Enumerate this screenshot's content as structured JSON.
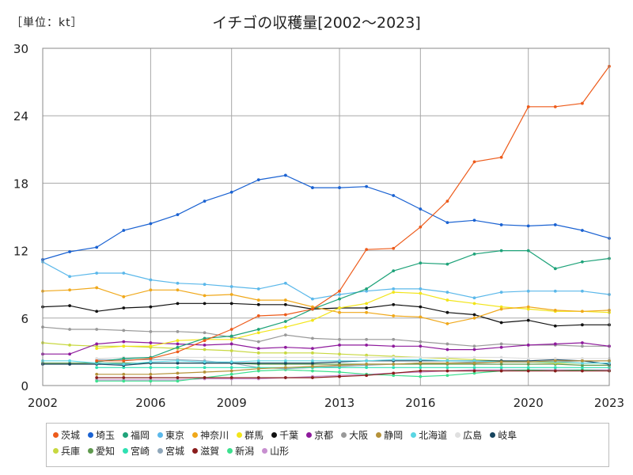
{
  "unit_label": "［単位：kt］",
  "title": "イチゴの収穫量[2002～2023]",
  "chart_data": {
    "type": "line",
    "title": "イチゴの収穫量[2002～2023]",
    "unit": "［単位：kt］",
    "xlabel": "",
    "ylabel": "",
    "xlim": [
      2002,
      2023
    ],
    "ylim": [
      0,
      30
    ],
    "xticks": [
      "2002",
      "2006",
      "2009",
      "2013",
      "2016",
      "2020",
      "2023"
    ],
    "yticks": [
      "0",
      "6",
      "12",
      "18",
      "24",
      "30"
    ],
    "grid": true,
    "legend_position": "bottom",
    "x": [
      2002,
      2003,
      2004,
      2005,
      2006,
      2007,
      2008,
      2009,
      2010,
      2011,
      2012,
      2013,
      2014,
      2015,
      2016,
      2017,
      2018,
      2019,
      2020,
      2021,
      2022,
      2023
    ],
    "series": [
      {
        "name": "茨城",
        "color": "#ed5b1b",
        "values": [
          null,
          null,
          2.2,
          2.2,
          2.4,
          3.0,
          4.0,
          5.0,
          6.2,
          6.3,
          6.8,
          8.4,
          12.1,
          12.2,
          14.1,
          16.4,
          19.9,
          20.3,
          24.8,
          24.8,
          25.1,
          28.4
        ]
      },
      {
        "name": "埼玉",
        "color": "#1a62d2",
        "values": [
          11.2,
          11.9,
          12.3,
          13.8,
          14.4,
          15.2,
          16.4,
          17.2,
          18.3,
          18.7,
          17.6,
          17.6,
          17.7,
          16.9,
          15.7,
          14.5,
          14.7,
          14.3,
          14.2,
          14.3,
          13.8,
          13.1
        ]
      },
      {
        "name": "福岡",
        "color": "#1fa37a",
        "values": [
          null,
          null,
          2.1,
          2.4,
          2.5,
          3.4,
          4.2,
          4.4,
          5.0,
          5.7,
          6.8,
          7.7,
          8.6,
          10.2,
          10.9,
          10.8,
          11.7,
          12.0,
          12.0,
          10.4,
          11.0,
          11.3
        ]
      },
      {
        "name": "東京",
        "color": "#5bb8ea",
        "values": [
          11.0,
          9.7,
          10.0,
          10.0,
          9.4,
          9.1,
          9.0,
          8.8,
          8.6,
          9.1,
          7.7,
          8.1,
          8.4,
          8.6,
          8.6,
          8.3,
          7.8,
          8.3,
          8.4,
          8.4,
          8.4,
          8.1
        ]
      },
      {
        "name": "神奈川",
        "color": "#f0a81a",
        "values": [
          8.4,
          8.5,
          8.7,
          7.9,
          8.5,
          8.5,
          8.0,
          8.1,
          7.6,
          7.6,
          7.0,
          6.5,
          6.5,
          6.2,
          6.1,
          5.5,
          6.0,
          6.8,
          7.0,
          6.7,
          6.6,
          6.7
        ]
      },
      {
        "name": "群馬",
        "color": "#f2e51a",
        "values": [
          null,
          null,
          3.3,
          3.5,
          3.5,
          4.0,
          4.1,
          4.1,
          4.7,
          5.2,
          5.8,
          6.9,
          7.3,
          8.3,
          8.2,
          7.6,
          7.3,
          7.0,
          6.8,
          6.6,
          6.6,
          6.5
        ]
      },
      {
        "name": "千葉",
        "color": "#111111",
        "values": [
          7.0,
          7.1,
          6.6,
          6.9,
          7.0,
          7.3,
          7.3,
          7.3,
          7.2,
          7.2,
          6.8,
          6.9,
          6.9,
          7.2,
          7.0,
          6.5,
          6.3,
          5.6,
          5.8,
          5.3,
          5.4,
          5.4
        ]
      },
      {
        "name": "京都",
        "color": "#8e1a9c",
        "values": [
          2.8,
          2.8,
          3.7,
          3.9,
          3.8,
          3.7,
          3.6,
          3.7,
          3.3,
          3.4,
          3.3,
          3.6,
          3.6,
          3.5,
          3.5,
          3.2,
          3.2,
          3.4,
          3.6,
          3.7,
          3.8,
          3.5
        ]
      },
      {
        "name": "大阪",
        "color": "#999999",
        "values": [
          5.2,
          5.0,
          5.0,
          4.9,
          4.8,
          4.8,
          4.7,
          4.3,
          3.9,
          4.5,
          4.2,
          4.1,
          4.1,
          4.1,
          3.9,
          3.7,
          3.5,
          3.7,
          3.6,
          3.6,
          3.5,
          3.5
        ]
      },
      {
        "name": "静岡",
        "color": "#b5923a",
        "values": [
          null,
          null,
          1.0,
          1.0,
          1.0,
          1.1,
          1.2,
          1.3,
          1.5,
          1.6,
          1.7,
          1.8,
          1.9,
          1.9,
          2.0,
          2.0,
          2.0,
          2.1,
          2.1,
          2.2,
          2.2,
          2.2
        ]
      },
      {
        "name": "北海道",
        "color": "#5ad6e3",
        "values": [
          2.2,
          2.2,
          2.0,
          1.9,
          2.1,
          2.2,
          2.1,
          2.1,
          2.2,
          2.2,
          2.2,
          2.2,
          2.2,
          2.3,
          2.3,
          2.2,
          2.2,
          2.1,
          2.1,
          2.1,
          2.0,
          2.0
        ]
      },
      {
        "name": "広島",
        "color": "#e0e0e0",
        "values": [
          null,
          null,
          2.4,
          2.5,
          2.5,
          2.5,
          2.5,
          2.5,
          2.5,
          2.5,
          2.5,
          2.5,
          2.5,
          2.5,
          2.5,
          2.5,
          2.5,
          2.5,
          2.4,
          2.4,
          2.4,
          2.4
        ]
      },
      {
        "name": "岐阜",
        "color": "#16445e",
        "values": [
          1.9,
          1.9,
          1.9,
          1.8,
          2.0,
          2.0,
          2.0,
          2.0,
          2.0,
          2.0,
          2.0,
          2.1,
          2.2,
          2.2,
          2.2,
          2.2,
          2.2,
          2.2,
          2.2,
          2.3,
          2.2,
          1.9
        ]
      },
      {
        "name": "兵庫",
        "color": "#c8d840",
        "values": [
          3.8,
          3.6,
          3.5,
          3.5,
          3.4,
          3.3,
          3.2,
          3.1,
          2.9,
          2.9,
          2.9,
          2.8,
          2.7,
          2.6,
          2.5,
          2.4,
          2.3,
          2.2,
          2.1,
          2.0,
          2.0,
          2.0
        ]
      },
      {
        "name": "愛知",
        "color": "#5f9a4e",
        "values": [
          2.0,
          2.0,
          2.0,
          2.0,
          2.0,
          2.0,
          2.0,
          2.0,
          1.9,
          1.9,
          1.9,
          1.9,
          1.9,
          1.9,
          1.9,
          1.9,
          1.9,
          1.9,
          1.9,
          1.9,
          1.8,
          1.8
        ]
      },
      {
        "name": "宮崎",
        "color": "#2fe0b2",
        "values": [
          null,
          null,
          1.6,
          1.6,
          1.6,
          1.6,
          1.6,
          1.6,
          1.6,
          1.6,
          1.6,
          1.6,
          1.6,
          1.6,
          1.6,
          1.6,
          1.6,
          1.6,
          1.6,
          1.6,
          1.6,
          1.6
        ]
      },
      {
        "name": "宮城",
        "color": "#8fa7ba",
        "values": [
          null,
          null,
          2.3,
          2.3,
          2.3,
          2.3,
          2.2,
          2.0,
          1.6,
          1.5,
          1.6,
          1.7,
          1.8,
          1.9,
          2.0,
          2.0,
          2.1,
          2.1,
          2.1,
          2.1,
          2.2,
          2.2
        ]
      },
      {
        "name": "滋賀",
        "color": "#8a1c1c",
        "values": [
          null,
          null,
          0.7,
          0.7,
          0.7,
          0.7,
          0.7,
          0.7,
          0.7,
          0.7,
          0.7,
          0.8,
          0.9,
          1.1,
          1.3,
          1.3,
          1.3,
          1.3,
          1.3,
          1.3,
          1.3,
          1.3
        ]
      },
      {
        "name": "新潟",
        "color": "#3ce08e",
        "values": [
          null,
          null,
          0.4,
          0.4,
          0.4,
          0.4,
          0.7,
          1.0,
          1.3,
          1.4,
          1.3,
          1.2,
          1.0,
          0.9,
          0.8,
          0.9,
          1.1,
          1.3,
          1.4,
          1.3,
          1.4,
          1.3
        ]
      },
      {
        "name": "山形",
        "color": "#c88fd0",
        "values": [
          null,
          null,
          0.5,
          0.5,
          0.5,
          0.5,
          0.6,
          0.6,
          0.6,
          0.7,
          0.8,
          0.9,
          1.0,
          1.1,
          1.2,
          1.3,
          1.4,
          1.4,
          1.4,
          1.4,
          1.4,
          1.4
        ]
      }
    ]
  }
}
